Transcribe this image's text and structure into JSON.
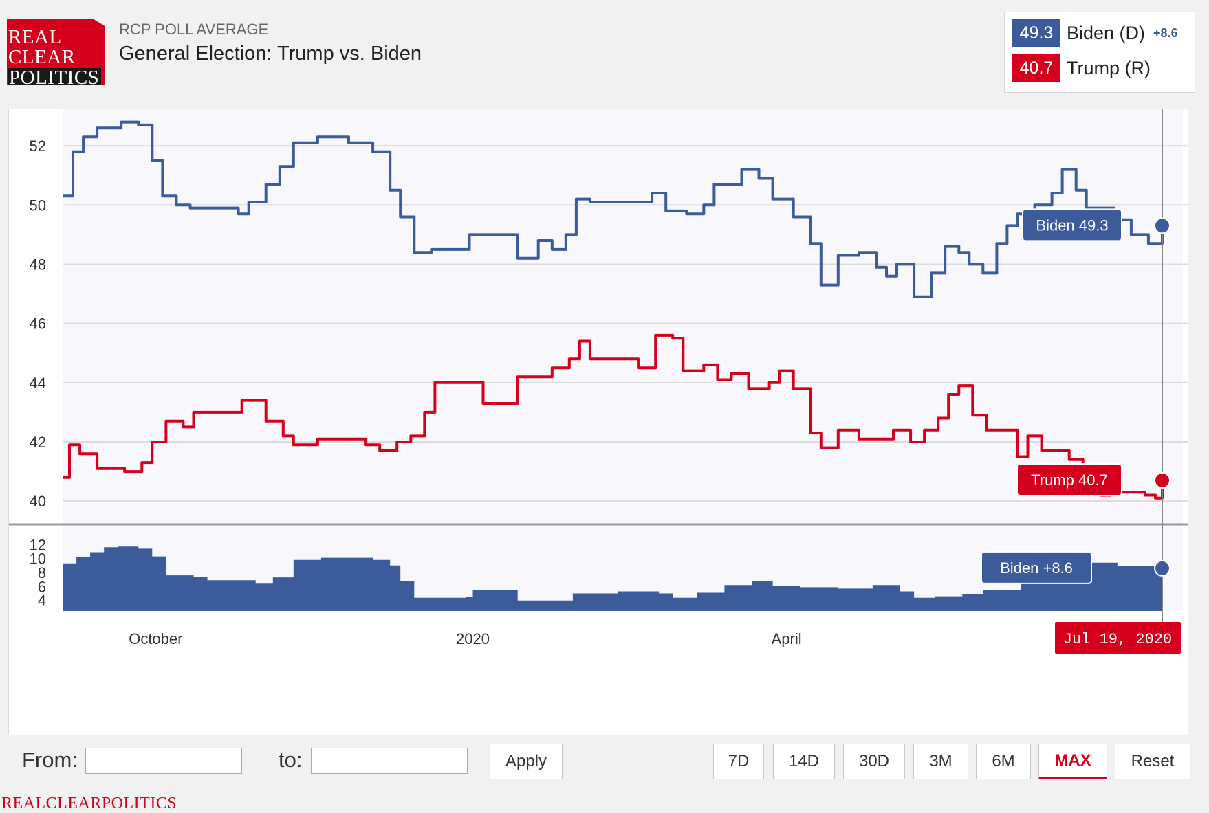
{
  "brand": {
    "logo_lines": [
      "REAL",
      "CLEAR",
      "POLITICS"
    ],
    "footer": "REALCLEARPOLITICS",
    "color": "#d6001c"
  },
  "header": {
    "kicker": "RCP POLL AVERAGE",
    "title": "General Election: Trump vs. Biden"
  },
  "legend": {
    "items": [
      {
        "value": "49.3",
        "name": "Biden (D)",
        "spread": "+8.6",
        "color": "#3b5b9a"
      },
      {
        "value": "40.7",
        "name": "Trump (R)",
        "spread": "",
        "color": "#d6001c"
      }
    ]
  },
  "chart_data": {
    "type": "line",
    "y_ticks": [
      "52",
      "50",
      "48",
      "46",
      "44",
      "42",
      "40"
    ],
    "ylim": [
      39.4,
      53.0
    ],
    "spread_ticks": [
      "12",
      "10",
      "8",
      "6",
      "4"
    ],
    "spread_ylim": [
      2.5,
      13.5
    ],
    "x_ticks": [
      {
        "label": "October",
        "date": "2019-10-01"
      },
      {
        "label": "2020",
        "date": "2020-01-01"
      },
      {
        "label": "April",
        "date": "2020-04-01"
      }
    ],
    "x_range": [
      "2019-09-04",
      "2020-07-19"
    ],
    "series": [
      {
        "name": "Biden",
        "color": "#3b5b9a",
        "points": [
          [
            "2019-09-04",
            50.3
          ],
          [
            "2019-09-07",
            51.8
          ],
          [
            "2019-09-10",
            52.3
          ],
          [
            "2019-09-14",
            52.6
          ],
          [
            "2019-09-21",
            52.8
          ],
          [
            "2019-09-26",
            52.7
          ],
          [
            "2019-09-30",
            51.5
          ],
          [
            "2019-10-03",
            50.3
          ],
          [
            "2019-10-07",
            50.0
          ],
          [
            "2019-10-11",
            49.9
          ],
          [
            "2019-10-25",
            49.7
          ],
          [
            "2019-10-28",
            50.1
          ],
          [
            "2019-11-02",
            50.7
          ],
          [
            "2019-11-06",
            51.3
          ],
          [
            "2019-11-10",
            52.1
          ],
          [
            "2019-11-17",
            52.3
          ],
          [
            "2019-11-26",
            52.1
          ],
          [
            "2019-12-03",
            51.8
          ],
          [
            "2019-12-08",
            50.5
          ],
          [
            "2019-12-11",
            49.6
          ],
          [
            "2019-12-15",
            48.4
          ],
          [
            "2019-12-20",
            48.5
          ],
          [
            "2019-12-31",
            49.0
          ],
          [
            "2020-01-14",
            48.2
          ],
          [
            "2020-01-20",
            48.8
          ],
          [
            "2020-01-24",
            48.5
          ],
          [
            "2020-01-28",
            49.0
          ],
          [
            "2020-01-31",
            50.2
          ],
          [
            "2020-02-04",
            50.1
          ],
          [
            "2020-02-22",
            50.4
          ],
          [
            "2020-02-26",
            49.8
          ],
          [
            "2020-03-03",
            49.7
          ],
          [
            "2020-03-08",
            50.0
          ],
          [
            "2020-03-11",
            50.7
          ],
          [
            "2020-03-19",
            51.2
          ],
          [
            "2020-03-24",
            50.9
          ],
          [
            "2020-03-28",
            50.2
          ],
          [
            "2020-04-03",
            49.6
          ],
          [
            "2020-04-08",
            48.7
          ],
          [
            "2020-04-11",
            47.3
          ],
          [
            "2020-04-16",
            48.3
          ],
          [
            "2020-04-22",
            48.4
          ],
          [
            "2020-04-27",
            47.9
          ],
          [
            "2020-04-30",
            47.6
          ],
          [
            "2020-05-03",
            48.0
          ],
          [
            "2020-05-08",
            46.9
          ],
          [
            "2020-05-13",
            47.7
          ],
          [
            "2020-05-17",
            48.6
          ],
          [
            "2020-05-21",
            48.4
          ],
          [
            "2020-05-24",
            48.0
          ],
          [
            "2020-05-28",
            47.7
          ],
          [
            "2020-06-01",
            48.7
          ],
          [
            "2020-06-04",
            49.3
          ],
          [
            "2020-06-07",
            49.7
          ],
          [
            "2020-06-12",
            50.0
          ],
          [
            "2020-06-17",
            50.4
          ],
          [
            "2020-06-20",
            51.2
          ],
          [
            "2020-06-24",
            50.5
          ],
          [
            "2020-06-27",
            49.9
          ],
          [
            "2020-07-05",
            49.5
          ],
          [
            "2020-07-10",
            49.0
          ],
          [
            "2020-07-15",
            48.7
          ],
          [
            "2020-07-19",
            49.3
          ]
        ]
      },
      {
        "name": "Trump",
        "color": "#d6001c",
        "points": [
          [
            "2019-09-04",
            40.8
          ],
          [
            "2019-09-06",
            41.9
          ],
          [
            "2019-09-09",
            41.6
          ],
          [
            "2019-09-14",
            41.1
          ],
          [
            "2019-09-22",
            41.0
          ],
          [
            "2019-09-27",
            41.3
          ],
          [
            "2019-09-30",
            42.0
          ],
          [
            "2019-10-04",
            42.7
          ],
          [
            "2019-10-09",
            42.5
          ],
          [
            "2019-10-12",
            43.0
          ],
          [
            "2019-10-26",
            43.4
          ],
          [
            "2019-11-02",
            42.7
          ],
          [
            "2019-11-07",
            42.2
          ],
          [
            "2019-11-10",
            41.9
          ],
          [
            "2019-11-17",
            42.1
          ],
          [
            "2019-11-28",
            42.1
          ],
          [
            "2019-12-01",
            41.9
          ],
          [
            "2019-12-05",
            41.7
          ],
          [
            "2019-12-10",
            42.0
          ],
          [
            "2019-12-14",
            42.2
          ],
          [
            "2019-12-18",
            43.0
          ],
          [
            "2019-12-21",
            44.0
          ],
          [
            "2020-01-04",
            43.3
          ],
          [
            "2020-01-14",
            44.2
          ],
          [
            "2020-01-24",
            44.5
          ],
          [
            "2020-01-29",
            44.8
          ],
          [
            "2020-02-01",
            45.4
          ],
          [
            "2020-02-04",
            44.8
          ],
          [
            "2020-02-18",
            44.5
          ],
          [
            "2020-02-23",
            45.6
          ],
          [
            "2020-02-28",
            45.5
          ],
          [
            "2020-03-02",
            44.4
          ],
          [
            "2020-03-08",
            44.6
          ],
          [
            "2020-03-12",
            44.1
          ],
          [
            "2020-03-16",
            44.3
          ],
          [
            "2020-03-21",
            43.8
          ],
          [
            "2020-03-27",
            44.0
          ],
          [
            "2020-03-30",
            44.4
          ],
          [
            "2020-04-03",
            43.8
          ],
          [
            "2020-04-08",
            42.3
          ],
          [
            "2020-04-11",
            41.8
          ],
          [
            "2020-04-16",
            42.4
          ],
          [
            "2020-04-22",
            42.1
          ],
          [
            "2020-04-27",
            42.1
          ],
          [
            "2020-05-02",
            42.4
          ],
          [
            "2020-05-07",
            42.0
          ],
          [
            "2020-05-11",
            42.4
          ],
          [
            "2020-05-15",
            42.8
          ],
          [
            "2020-05-18",
            43.6
          ],
          [
            "2020-05-21",
            43.9
          ],
          [
            "2020-05-25",
            42.9
          ],
          [
            "2020-05-29",
            42.4
          ],
          [
            "2020-06-04",
            42.4
          ],
          [
            "2020-06-07",
            41.5
          ],
          [
            "2020-06-10",
            42.2
          ],
          [
            "2020-06-14",
            41.7
          ],
          [
            "2020-06-22",
            41.4
          ],
          [
            "2020-06-26",
            41.1
          ],
          [
            "2020-07-01",
            40.2
          ],
          [
            "2020-07-04",
            40.5
          ],
          [
            "2020-07-07",
            40.3
          ],
          [
            "2020-07-10",
            40.3
          ],
          [
            "2020-07-14",
            40.2
          ],
          [
            "2020-07-17",
            40.1
          ],
          [
            "2020-07-19",
            40.7
          ]
        ]
      }
    ],
    "spread_series": {
      "name": "Biden",
      "color": "#3b5b9a",
      "points": [
        [
          "2019-09-04",
          9.3
        ],
        [
          "2019-09-08",
          10.2
        ],
        [
          "2019-09-12",
          10.9
        ],
        [
          "2019-09-16",
          11.6
        ],
        [
          "2019-09-20",
          11.7
        ],
        [
          "2019-09-26",
          11.4
        ],
        [
          "2019-09-30",
          10.3
        ],
        [
          "2019-10-04",
          7.6
        ],
        [
          "2019-10-12",
          7.4
        ],
        [
          "2019-10-16",
          6.9
        ],
        [
          "2019-10-26",
          6.9
        ],
        [
          "2019-10-30",
          6.4
        ],
        [
          "2019-11-04",
          7.3
        ],
        [
          "2019-11-10",
          9.8
        ],
        [
          "2019-11-18",
          10.1
        ],
        [
          "2019-11-26",
          10.1
        ],
        [
          "2019-12-03",
          9.8
        ],
        [
          "2019-12-08",
          9.0
        ],
        [
          "2019-12-11",
          6.8
        ],
        [
          "2019-12-15",
          4.4
        ],
        [
          "2019-12-30",
          4.5
        ],
        [
          "2020-01-01",
          5.5
        ],
        [
          "2020-01-12",
          5.5
        ],
        [
          "2020-01-14",
          4.0
        ],
        [
          "2020-01-24",
          4.0
        ],
        [
          "2020-01-30",
          5.0
        ],
        [
          "2020-02-12",
          5.3
        ],
        [
          "2020-02-24",
          5.0
        ],
        [
          "2020-02-28",
          4.4
        ],
        [
          "2020-03-06",
          5.1
        ],
        [
          "2020-03-14",
          6.2
        ],
        [
          "2020-03-22",
          6.8
        ],
        [
          "2020-03-28",
          6.1
        ],
        [
          "2020-04-05",
          5.9
        ],
        [
          "2020-04-16",
          5.7
        ],
        [
          "2020-04-26",
          6.2
        ],
        [
          "2020-05-04",
          5.3
        ],
        [
          "2020-05-08",
          4.4
        ],
        [
          "2020-05-14",
          4.6
        ],
        [
          "2020-05-22",
          4.9
        ],
        [
          "2020-05-28",
          5.5
        ],
        [
          "2020-06-04",
          5.5
        ],
        [
          "2020-06-08",
          8.3
        ],
        [
          "2020-06-16",
          8.7
        ],
        [
          "2020-06-22",
          9.3
        ],
        [
          "2020-06-28",
          9.4
        ],
        [
          "2020-07-06",
          8.9
        ],
        [
          "2020-07-12",
          8.9
        ],
        [
          "2020-07-19",
          8.6
        ]
      ]
    },
    "tooltips": [
      {
        "label": "Biden 49.3",
        "color": "#3b5b9a"
      },
      {
        "label": "Trump 40.7",
        "color": "#d6001c"
      },
      {
        "label": "Biden +8.6",
        "color": "#3b5b9a"
      }
    ],
    "cursor_date_label": "Jul 19, 2020",
    "grid": true
  },
  "controls": {
    "from_label": "From:",
    "to_label": "to:",
    "from_value": "",
    "to_value": "",
    "apply_label": "Apply",
    "ranges": [
      "7D",
      "14D",
      "30D",
      "3M",
      "6M",
      "MAX"
    ],
    "active_range": "MAX",
    "reset_label": "Reset"
  }
}
